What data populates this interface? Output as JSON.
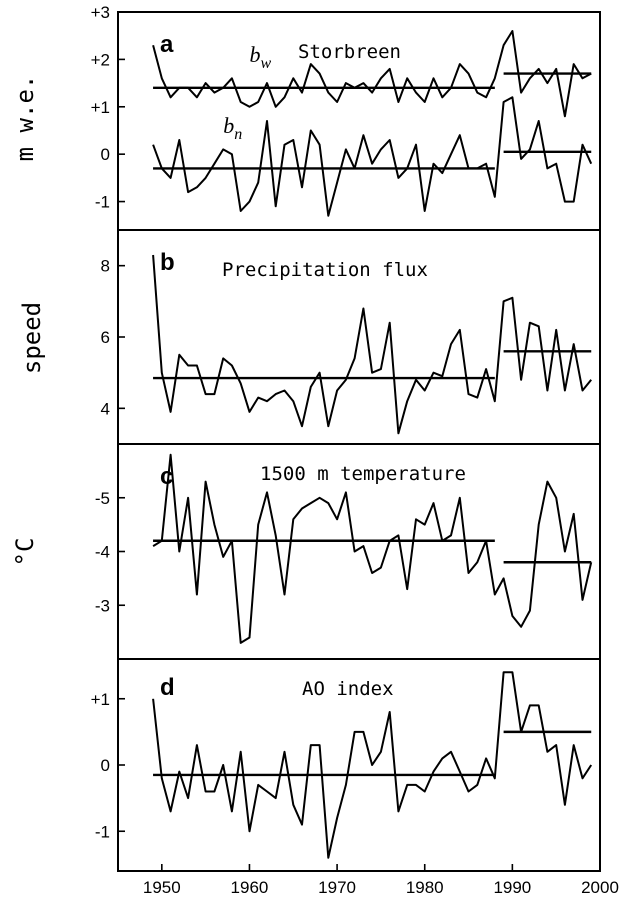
{
  "chart_data": [
    {
      "panel": "a",
      "type": "line",
      "title": "Storbreen",
      "ylabel": "m  w.e.",
      "ylim": [
        -1.6,
        3.0
      ],
      "yticks": [
        -1,
        0,
        1,
        2,
        3
      ],
      "ytick_labels": [
        "-1",
        "0",
        "+1",
        "+2",
        "+3"
      ],
      "xlim": [
        1945,
        2000
      ],
      "series": [
        {
          "name": "bw",
          "x": [
            1949,
            1950,
            1951,
            1952,
            1953,
            1954,
            1955,
            1956,
            1957,
            1958,
            1959,
            1960,
            1961,
            1962,
            1963,
            1964,
            1965,
            1966,
            1967,
            1968,
            1969,
            1970,
            1971,
            1972,
            1973,
            1974,
            1975,
            1976,
            1977,
            1978,
            1979,
            1980,
            1981,
            1982,
            1983,
            1984,
            1985,
            1986,
            1987,
            1988,
            1989,
            1990,
            1991,
            1992,
            1993,
            1994,
            1995,
            1996,
            1997,
            1998,
            1999
          ],
          "values": [
            2.3,
            1.6,
            1.2,
            1.4,
            1.4,
            1.2,
            1.5,
            1.3,
            1.4,
            1.6,
            1.1,
            1.0,
            1.1,
            1.5,
            1.0,
            1.2,
            1.6,
            1.3,
            1.9,
            1.7,
            1.3,
            1.1,
            1.5,
            1.4,
            1.5,
            1.3,
            1.6,
            1.8,
            1.1,
            1.6,
            1.3,
            1.1,
            1.6,
            1.2,
            1.4,
            1.9,
            1.7,
            1.3,
            1.2,
            1.6,
            2.3,
            2.6,
            1.3,
            1.6,
            1.8,
            1.5,
            1.8,
            0.8,
            1.9,
            1.6,
            1.7
          ],
          "means": [
            {
              "x": [
                1949,
                1988
              ],
              "value": 1.4
            },
            {
              "x": [
                1989,
                1999
              ],
              "value": 1.7
            }
          ]
        },
        {
          "name": "bn",
          "x": [
            1949,
            1950,
            1951,
            1952,
            1953,
            1954,
            1955,
            1956,
            1957,
            1958,
            1959,
            1960,
            1961,
            1962,
            1963,
            1964,
            1965,
            1966,
            1967,
            1968,
            1969,
            1970,
            1971,
            1972,
            1973,
            1974,
            1975,
            1976,
            1977,
            1978,
            1979,
            1980,
            1981,
            1982,
            1983,
            1984,
            1985,
            1986,
            1987,
            1988,
            1989,
            1990,
            1991,
            1992,
            1993,
            1994,
            1995,
            1996,
            1997,
            1998,
            1999
          ],
          "values": [
            0.2,
            -0.3,
            -0.5,
            0.3,
            -0.8,
            -0.7,
            -0.5,
            -0.2,
            0.1,
            0.0,
            -1.2,
            -1.0,
            -0.6,
            0.7,
            -1.1,
            0.2,
            0.3,
            -0.7,
            0.5,
            0.2,
            -1.3,
            -0.6,
            0.1,
            -0.3,
            0.4,
            -0.2,
            0.1,
            0.3,
            -0.5,
            -0.3,
            0.2,
            -1.2,
            -0.2,
            -0.4,
            0.0,
            0.4,
            -0.3,
            -0.3,
            -0.2,
            -0.9,
            1.1,
            1.2,
            -0.1,
            0.1,
            0.7,
            -0.3,
            -0.2,
            -1.0,
            -1.0,
            0.2,
            -0.2
          ],
          "means": [
            {
              "x": [
                1949,
                1988
              ],
              "value": -0.3
            },
            {
              "x": [
                1989,
                1999
              ],
              "value": 0.05
            }
          ]
        }
      ]
    },
    {
      "panel": "b",
      "type": "line",
      "title": "Precipitation flux",
      "ylabel": "speed",
      "ylim": [
        3.0,
        9.0
      ],
      "yticks": [
        4,
        6,
        8
      ],
      "ytick_labels": [
        "4",
        "6",
        "8"
      ],
      "xlim": [
        1945,
        2000
      ],
      "series": [
        {
          "name": "",
          "x": [
            1949,
            1950,
            1951,
            1952,
            1953,
            1954,
            1955,
            1956,
            1957,
            1958,
            1959,
            1960,
            1961,
            1962,
            1963,
            1964,
            1965,
            1966,
            1967,
            1968,
            1969,
            1970,
            1971,
            1972,
            1973,
            1974,
            1975,
            1976,
            1977,
            1978,
            1979,
            1980,
            1981,
            1982,
            1983,
            1984,
            1985,
            1986,
            1987,
            1988,
            1989,
            1990,
            1991,
            1992,
            1993,
            1994,
            1995,
            1996,
            1997,
            1998,
            1999
          ],
          "values": [
            8.3,
            5.0,
            3.9,
            5.5,
            5.2,
            5.2,
            4.4,
            4.4,
            5.4,
            5.2,
            4.7,
            3.9,
            4.3,
            4.2,
            4.4,
            4.5,
            4.2,
            3.5,
            4.6,
            5.0,
            3.5,
            4.5,
            4.8,
            5.4,
            6.8,
            5.0,
            5.1,
            6.4,
            3.3,
            4.2,
            4.8,
            4.5,
            5.0,
            4.9,
            5.8,
            6.2,
            4.4,
            4.3,
            5.1,
            4.2,
            7.0,
            7.1,
            4.8,
            6.4,
            6.3,
            4.5,
            6.2,
            4.5,
            5.8,
            4.5,
            4.8
          ],
          "means": [
            {
              "x": [
                1949,
                1988
              ],
              "value": 4.85
            },
            {
              "x": [
                1989,
                1999
              ],
              "value": 5.6
            }
          ]
        }
      ]
    },
    {
      "panel": "c",
      "type": "line",
      "title": "1500 m temperature",
      "ylabel": "°C",
      "y_inverted": true,
      "ylim": [
        -6.0,
        -2.0
      ],
      "yticks": [
        -5,
        -4,
        -3
      ],
      "ytick_labels": [
        "-5",
        "-4",
        "-3"
      ],
      "xlim": [
        1945,
        2000
      ],
      "series": [
        {
          "name": "",
          "x": [
            1949,
            1950,
            1951,
            1952,
            1953,
            1954,
            1955,
            1956,
            1957,
            1958,
            1959,
            1960,
            1961,
            1962,
            1963,
            1964,
            1965,
            1966,
            1967,
            1968,
            1969,
            1970,
            1971,
            1972,
            1973,
            1974,
            1975,
            1976,
            1977,
            1978,
            1979,
            1980,
            1981,
            1982,
            1983,
            1984,
            1985,
            1986,
            1987,
            1988,
            1989,
            1990,
            1991,
            1992,
            1993,
            1994,
            1995,
            1996,
            1997,
            1998,
            1999
          ],
          "values": [
            -4.1,
            -4.2,
            -5.8,
            -4.0,
            -5.0,
            -3.2,
            -5.3,
            -4.5,
            -3.9,
            -4.2,
            -2.3,
            -2.4,
            -4.5,
            -5.1,
            -4.3,
            -3.2,
            -4.6,
            -4.8,
            -4.9,
            -5.0,
            -4.9,
            -4.6,
            -5.1,
            -4.0,
            -4.1,
            -3.6,
            -3.7,
            -4.2,
            -4.3,
            -3.3,
            -4.6,
            -4.5,
            -4.9,
            -4.2,
            -4.3,
            -5.0,
            -3.6,
            -3.8,
            -4.2,
            -3.2,
            -3.5,
            -2.8,
            -2.6,
            -2.9,
            -4.5,
            -5.3,
            -5.0,
            -4.0,
            -4.7,
            -3.1,
            -3.8
          ],
          "means": [
            {
              "x": [
                1949,
                1988
              ],
              "value": -4.2
            },
            {
              "x": [
                1989,
                1999
              ],
              "value": -3.8
            }
          ]
        }
      ]
    },
    {
      "panel": "d",
      "type": "line",
      "title": "AO  index",
      "ylabel": "",
      "ylim": [
        -1.6,
        1.6
      ],
      "yticks": [
        -1,
        0,
        1
      ],
      "ytick_labels": [
        "-1",
        "0",
        "+1"
      ],
      "xlim": [
        1945,
        2000
      ],
      "xticks": [
        1950,
        1960,
        1970,
        1980,
        1990,
        2000
      ],
      "xtick_labels": [
        "1950",
        "1960",
        "1970",
        "1980",
        "1990",
        "2000"
      ],
      "series": [
        {
          "name": "",
          "x": [
            1949,
            1950,
            1951,
            1952,
            1953,
            1954,
            1955,
            1956,
            1957,
            1958,
            1959,
            1960,
            1961,
            1962,
            1963,
            1964,
            1965,
            1966,
            1967,
            1968,
            1969,
            1970,
            1971,
            1972,
            1973,
            1974,
            1975,
            1976,
            1977,
            1978,
            1979,
            1980,
            1981,
            1982,
            1983,
            1984,
            1985,
            1986,
            1987,
            1988,
            1989,
            1990,
            1991,
            1992,
            1993,
            1994,
            1995,
            1996,
            1997,
            1998,
            1999
          ],
          "values": [
            1.0,
            -0.2,
            -0.7,
            -0.1,
            -0.5,
            0.3,
            -0.4,
            -0.4,
            0.0,
            -0.7,
            0.2,
            -1.0,
            -0.3,
            -0.4,
            -0.5,
            0.2,
            -0.6,
            -0.9,
            0.3,
            0.3,
            -1.4,
            -0.8,
            -0.3,
            0.5,
            0.5,
            0.0,
            0.2,
            0.8,
            -0.7,
            -0.3,
            -0.3,
            -0.4,
            -0.1,
            0.1,
            0.2,
            -0.1,
            -0.4,
            -0.3,
            0.1,
            -0.2,
            1.4,
            1.4,
            0.5,
            0.9,
            0.9,
            0.2,
            0.3,
            -0.6,
            0.3,
            -0.2,
            0.0
          ],
          "means": [
            {
              "x": [
                1949,
                1988
              ],
              "value": -0.15
            },
            {
              "x": [
                1989,
                1999
              ],
              "value": 0.5
            }
          ]
        }
      ]
    }
  ],
  "series_labels": {
    "bw": {
      "base": "b",
      "sub": "w",
      "x": 1960,
      "value": 1.95
    },
    "bn": {
      "base": "b",
      "sub": "n",
      "x": 1957,
      "value": 0.45
    }
  }
}
